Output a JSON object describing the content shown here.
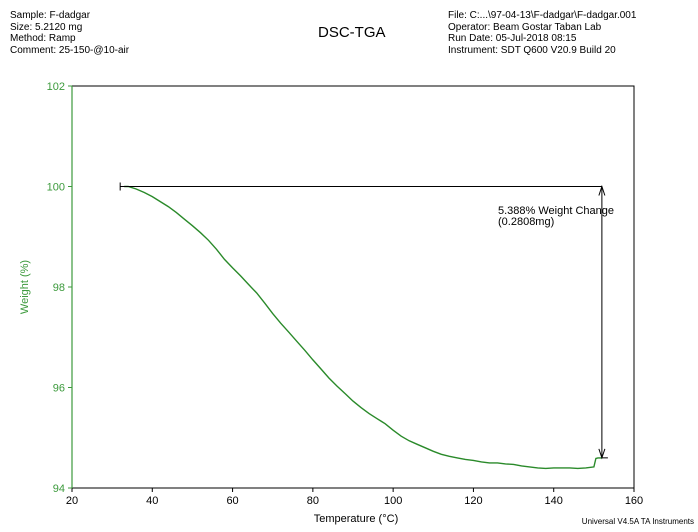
{
  "header": {
    "sample": "Sample: F-dadgar",
    "size": "Size:  5.2120 mg",
    "method": "Method: Ramp",
    "comment": "Comment: 25-150-@10-air",
    "file": "File: C:...\\97-04-13\\F-dadgar\\F-dadgar.001",
    "operator": "Operator: Beam Gostar Taban Lab",
    "run_date": "Run Date: 05-Jul-2018 08:15",
    "instrument": "Instrument: SDT Q600 V20.9 Build 20"
  },
  "footer": "Universal V4.5A TA Instruments",
  "colors": {
    "curve": "#2a8a2a",
    "axis_left": "#3c9a3c",
    "text": "#000000"
  },
  "chart_data": {
    "type": "line",
    "title": "DSC-TGA",
    "xlabel": "Temperature (°C)",
    "ylabel": "Weight (%)",
    "xlim": [
      20,
      160
    ],
    "ylim": [
      94,
      102
    ],
    "xticks": [
      20,
      40,
      60,
      80,
      100,
      120,
      140,
      160
    ],
    "yticks": [
      94,
      96,
      98,
      100,
      102
    ],
    "grid": false,
    "series": [
      {
        "x": [
          33,
          34,
          36,
          38,
          40,
          42,
          44,
          46,
          48,
          50,
          52,
          54,
          56,
          58,
          60,
          62,
          64,
          66,
          68,
          70,
          72,
          74,
          76,
          78,
          80,
          82,
          84,
          86,
          88,
          90,
          92,
          94,
          96,
          98,
          100,
          102,
          104,
          106,
          108,
          110,
          112,
          114,
          116,
          118,
          120,
          122,
          124,
          126,
          128,
          130,
          132,
          134,
          136,
          138,
          140,
          142,
          144,
          146,
          148,
          150,
          150.5,
          151,
          152
        ],
        "y": [
          100.0,
          100.0,
          99.95,
          99.88,
          99.8,
          99.7,
          99.6,
          99.48,
          99.35,
          99.22,
          99.08,
          98.93,
          98.75,
          98.55,
          98.38,
          98.22,
          98.05,
          97.88,
          97.68,
          97.47,
          97.28,
          97.1,
          96.92,
          96.74,
          96.55,
          96.37,
          96.19,
          96.03,
          95.88,
          95.73,
          95.6,
          95.48,
          95.38,
          95.28,
          95.15,
          95.03,
          94.94,
          94.87,
          94.8,
          94.73,
          94.67,
          94.63,
          94.6,
          94.57,
          94.55,
          94.52,
          94.5,
          94.5,
          94.48,
          94.47,
          94.44,
          94.42,
          94.4,
          94.39,
          94.4,
          94.4,
          94.4,
          94.39,
          94.4,
          94.42,
          94.59,
          94.6,
          94.6
        ]
      }
    ],
    "annotations": [
      {
        "line1": "5.388% Weight Change",
        "line2": "(0.2808mg)"
      }
    ],
    "step": {
      "x_start": 32,
      "x_end": 152,
      "y_top": 100.0,
      "y_bottom": 94.6
    }
  }
}
